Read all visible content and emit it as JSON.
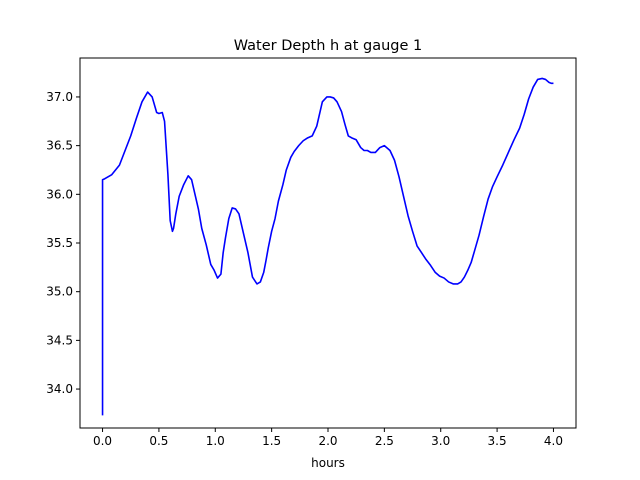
{
  "chart_data": {
    "type": "line",
    "title": "Water Depth h at gauge 1",
    "xlabel": "hours",
    "ylabel": "",
    "xlim": [
      -0.2,
      4.2
    ],
    "ylim": [
      33.6,
      37.4
    ],
    "xticks": [
      0.0,
      0.5,
      1.0,
      1.5,
      2.0,
      2.5,
      3.0,
      3.5,
      4.0
    ],
    "xtick_labels": [
      "0.0",
      "0.5",
      "1.0",
      "1.5",
      "2.0",
      "2.5",
      "3.0",
      "3.5",
      "4.0"
    ],
    "yticks": [
      34.0,
      34.5,
      35.0,
      35.5,
      36.0,
      36.5,
      37.0
    ],
    "ytick_labels": [
      "34.0",
      "34.5",
      "35.0",
      "35.5",
      "36.0",
      "36.5",
      "37.0"
    ],
    "grid": false,
    "series": [
      {
        "color": "#0000ff",
        "x": [
          0.0,
          0.0,
          0.02,
          0.08,
          0.15,
          0.2,
          0.25,
          0.3,
          0.35,
          0.4,
          0.44,
          0.48,
          0.5,
          0.53,
          0.55,
          0.58,
          0.6,
          0.62,
          0.63,
          0.65,
          0.68,
          0.72,
          0.76,
          0.79,
          0.81,
          0.85,
          0.88,
          0.92,
          0.96,
          0.99,
          1.02,
          1.05,
          1.07,
          1.09,
          1.12,
          1.15,
          1.18,
          1.21,
          1.25,
          1.29,
          1.33,
          1.37,
          1.4,
          1.43,
          1.45,
          1.47,
          1.5,
          1.53,
          1.56,
          1.6,
          1.63,
          1.67,
          1.7,
          1.74,
          1.78,
          1.82,
          1.86,
          1.9,
          1.95,
          1.99,
          2.02,
          2.05,
          2.08,
          2.12,
          2.15,
          2.18,
          2.21,
          2.25,
          2.29,
          2.32,
          2.35,
          2.38,
          2.42,
          2.46,
          2.5,
          2.55,
          2.59,
          2.63,
          2.67,
          2.71,
          2.75,
          2.79,
          2.83,
          2.87,
          2.91,
          2.95,
          2.99,
          3.03,
          3.07,
          3.11,
          3.15,
          3.18,
          3.21,
          3.24,
          3.27,
          3.3,
          3.34,
          3.38,
          3.42,
          3.46,
          3.5,
          3.55,
          3.6,
          3.65,
          3.7,
          3.74,
          3.78,
          3.82,
          3.86,
          3.9,
          3.93,
          3.96,
          3.98,
          4.0
        ],
        "y": [
          33.73,
          36.15,
          36.16,
          36.2,
          36.3,
          36.45,
          36.6,
          36.78,
          36.95,
          37.05,
          37.0,
          36.84,
          36.83,
          36.84,
          36.75,
          36.2,
          35.73,
          35.62,
          35.65,
          35.8,
          35.98,
          36.1,
          36.19,
          36.15,
          36.05,
          35.85,
          35.65,
          35.48,
          35.28,
          35.22,
          35.14,
          35.18,
          35.4,
          35.55,
          35.75,
          35.86,
          35.85,
          35.8,
          35.6,
          35.4,
          35.15,
          35.08,
          35.1,
          35.2,
          35.32,
          35.45,
          35.62,
          35.75,
          35.93,
          36.1,
          36.25,
          36.38,
          36.44,
          36.5,
          36.55,
          36.58,
          36.6,
          36.7,
          36.95,
          37.0,
          37.0,
          36.99,
          36.95,
          36.85,
          36.72,
          36.6,
          36.58,
          36.56,
          36.48,
          36.45,
          36.45,
          36.43,
          36.43,
          36.48,
          36.5,
          36.45,
          36.35,
          36.18,
          35.98,
          35.78,
          35.62,
          35.47,
          35.4,
          35.33,
          35.27,
          35.2,
          35.16,
          35.14,
          35.1,
          35.08,
          35.08,
          35.1,
          35.15,
          35.22,
          35.3,
          35.42,
          35.58,
          35.77,
          35.95,
          36.08,
          36.18,
          36.3,
          36.43,
          36.56,
          36.68,
          36.82,
          36.98,
          37.1,
          37.18,
          37.19,
          37.18,
          37.15,
          37.14,
          37.14
        ]
      }
    ]
  }
}
